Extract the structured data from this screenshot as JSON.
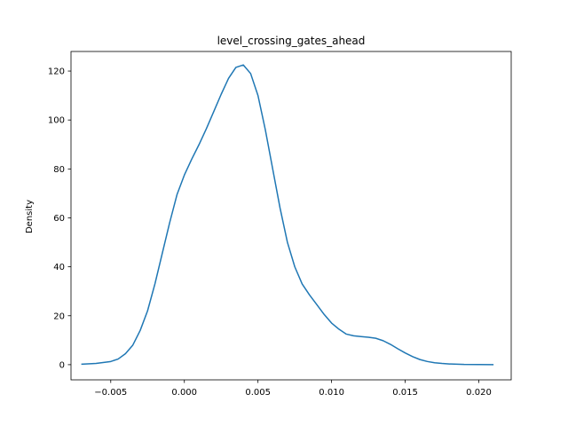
{
  "chart_data": {
    "type": "line",
    "title": "level_crossing_gates_ahead",
    "xlabel": "",
    "ylabel": "Density",
    "xlim": [
      -0.0077,
      0.0222
    ],
    "ylim": [
      -6.2,
      128.0
    ],
    "grid": false,
    "legend": "none",
    "x_ticks": [
      {
        "value": -0.005,
        "label": "−0.005"
      },
      {
        "value": 0.0,
        "label": "0.000"
      },
      {
        "value": 0.005,
        "label": "0.005"
      },
      {
        "value": 0.01,
        "label": "0.010"
      },
      {
        "value": 0.015,
        "label": "0.015"
      },
      {
        "value": 0.02,
        "label": "0.020"
      }
    ],
    "y_ticks": [
      {
        "value": 0,
        "label": "0"
      },
      {
        "value": 20,
        "label": "20"
      },
      {
        "value": 40,
        "label": "40"
      },
      {
        "value": 60,
        "label": "60"
      },
      {
        "value": 80,
        "label": "80"
      },
      {
        "value": 100,
        "label": "100"
      },
      {
        "value": 120,
        "label": "120"
      }
    ],
    "series": [
      {
        "color": "#1f77b4",
        "x": [
          -0.007,
          -0.006,
          -0.005,
          -0.0045,
          -0.004,
          -0.0035,
          -0.003,
          -0.0025,
          -0.002,
          -0.0015,
          -0.001,
          -0.0005,
          0.0,
          0.0005,
          0.001,
          0.0015,
          0.002,
          0.0025,
          0.003,
          0.0035,
          0.004,
          0.0045,
          0.005,
          0.0055,
          0.006,
          0.0065,
          0.007,
          0.0075,
          0.008,
          0.0085,
          0.009,
          0.0095,
          0.01,
          0.0105,
          0.011,
          0.0115,
          0.012,
          0.0125,
          0.013,
          0.0135,
          0.014,
          0.0145,
          0.015,
          0.0155,
          0.016,
          0.0165,
          0.017,
          0.0175,
          0.018,
          0.019,
          0.02,
          0.021
        ],
        "y": [
          0.2,
          0.5,
          1.3,
          2.3,
          4.5,
          8.0,
          14.0,
          22.0,
          33.0,
          45.5,
          58.0,
          69.5,
          77.5,
          84.0,
          90.0,
          96.5,
          103.5,
          110.5,
          117.0,
          121.5,
          122.5,
          119.0,
          110.0,
          96.0,
          80.0,
          64.0,
          50.0,
          40.0,
          33.0,
          28.5,
          24.5,
          20.5,
          17.0,
          14.5,
          12.5,
          11.8,
          11.5,
          11.2,
          10.8,
          9.8,
          8.3,
          6.5,
          4.8,
          3.3,
          2.1,
          1.3,
          0.8,
          0.5,
          0.3,
          0.1,
          0.05,
          0.02
        ]
      }
    ]
  }
}
